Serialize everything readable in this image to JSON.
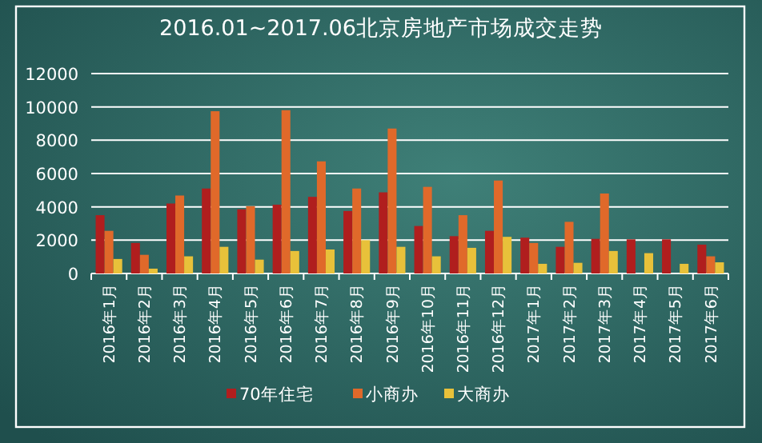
{
  "chart_data": {
    "type": "bar",
    "title": "2016.01~2017.06北京房地产市场成交走势",
    "categories": [
      "2016年1月",
      "2016年2月",
      "2016年3月",
      "2016年4月",
      "2016年5月",
      "2016年6月",
      "2016年7月",
      "2016年8月",
      "2016年9月",
      "2016年10月",
      "2016年11月",
      "2016年12月",
      "2017年1月",
      "2017年2月",
      "2017年3月",
      "2017年4月",
      "2017年5月",
      "2017年6月"
    ],
    "series": [
      {
        "name": "70年住宅",
        "color": "#b01e1e",
        "values": [
          3500,
          1830,
          4200,
          5100,
          3850,
          4130,
          4600,
          3750,
          4870,
          2850,
          2240,
          2560,
          2150,
          1600,
          2080,
          2050,
          2050,
          1730
        ]
      },
      {
        "name": "小商办",
        "color": "#e0692a",
        "values": [
          2560,
          1120,
          4680,
          9740,
          4040,
          9800,
          6730,
          5100,
          8700,
          5200,
          3500,
          5580,
          1830,
          3100,
          4800,
          null,
          null,
          1030
        ]
      },
      {
        "name": "大商办",
        "color": "#e8c13a",
        "values": [
          870,
          290,
          1030,
          1600,
          830,
          1350,
          1440,
          2000,
          1600,
          1030,
          1540,
          2200,
          580,
          640,
          1350,
          1220,
          580,
          670
        ]
      }
    ],
    "ylim": [
      0,
      12000
    ],
    "yticks": [
      0,
      2000,
      4000,
      6000,
      8000,
      10000,
      12000
    ],
    "grid": "y",
    "legend": "bottom"
  }
}
